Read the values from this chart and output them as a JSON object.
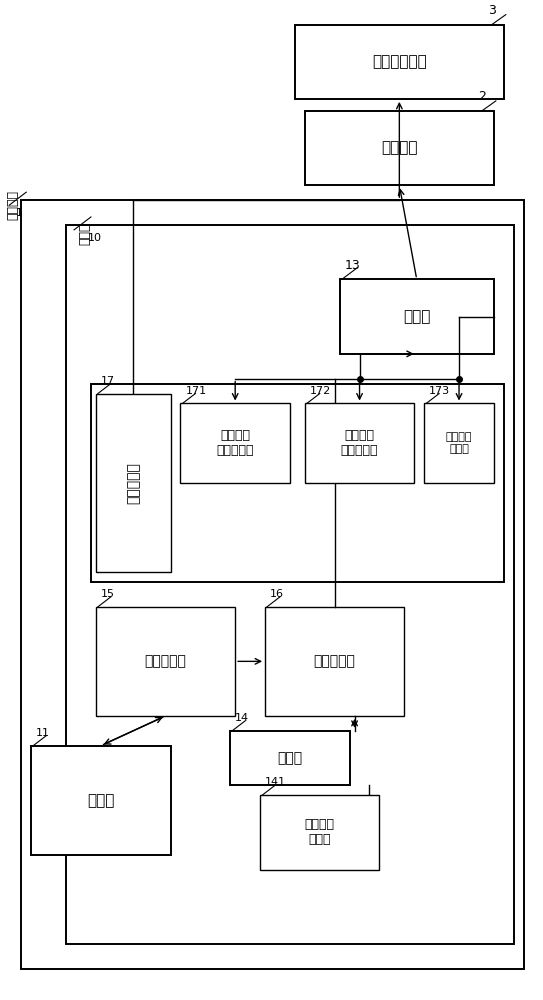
{
  "bg_color": "#ffffff",
  "blocks": {
    "material": {
      "label": "材料供给装置",
      "num": "3"
    },
    "camera": {
      "label": "摄像装置",
      "num": "2"
    },
    "notify": {
      "label": "通知部",
      "num": "13"
    },
    "photo": {
      "label": "拍摄部",
      "num": "11"
    },
    "storage": {
      "label": "存储部",
      "num": "14"
    },
    "ref_db": {
      "label": "基准图像\n数据库",
      "num": "141"
    },
    "shoot_ctrl": {
      "label": "拍摄控制部",
      "num": "15"
    },
    "image_proc": {
      "label": "图像处理部",
      "num": "16"
    },
    "state_judge": {
      "label": "状态判定部",
      "num": "17"
    },
    "furnace_mon": {
      "label": "炉膛内衬\n位置监视部",
      "num": "171"
    },
    "melt_mon": {
      "label": "熔体表面\n位置监视部",
      "num": "172"
    },
    "irrad_mon": {
      "label": "照射位置\n监视部",
      "num": "173"
    }
  },
  "outer_label": "监视装置",
  "outer_num": "1",
  "ctrl_label": "控制部",
  "ctrl_num": "10"
}
